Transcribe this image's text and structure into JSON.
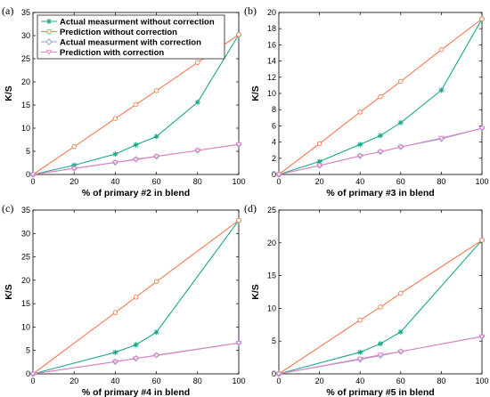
{
  "colors": {
    "actual_without": "#1aa88c",
    "prediction_without": "#f47a52",
    "actual_with": "#8c9fd1",
    "prediction_with": "#e383c4"
  },
  "chart_data": [
    {
      "type": "line",
      "panel_label": "(a)",
      "xlabel": "% of primary #2 in blend",
      "ylabel": "K/S",
      "xlim": [
        0,
        100
      ],
      "ylim": [
        0,
        35
      ],
      "xticks": [
        0,
        20,
        40,
        60,
        80,
        100
      ],
      "yticks": [
        0,
        5,
        10,
        15,
        20,
        25,
        30,
        35
      ],
      "grid": false,
      "legend_position": "top-left",
      "series": [
        {
          "name": "Actual measurment without correction",
          "marker": "star",
          "x": [
            0,
            20,
            40,
            50,
            60,
            80,
            100
          ],
          "y": [
            0,
            2.0,
            4.4,
            6.4,
            8.2,
            15.6,
            30.2
          ]
        },
        {
          "name": "Prediction without correction",
          "marker": "circle",
          "x": [
            0,
            20,
            40,
            50,
            60,
            80,
            100
          ],
          "y": [
            0,
            6.0,
            12.1,
            15.1,
            18.1,
            24.2,
            30.2
          ]
        },
        {
          "name": "Actual measurment with correction",
          "marker": "diamond",
          "x": [
            0,
            20,
            40,
            50,
            60,
            80,
            100
          ],
          "y": [
            0,
            1.3,
            2.6,
            3.3,
            3.9,
            5.2,
            6.5
          ]
        },
        {
          "name": "Prediction with correction",
          "marker": "triangle",
          "x": [
            0,
            20,
            40,
            50,
            60,
            80,
            100
          ],
          "y": [
            0,
            1.3,
            2.6,
            3.2,
            3.9,
            5.2,
            6.5
          ]
        }
      ]
    },
    {
      "type": "line",
      "panel_label": "(b)",
      "xlabel": "% of primary #3 in blend",
      "ylabel": "K/S",
      "xlim": [
        0,
        100
      ],
      "ylim": [
        0,
        20
      ],
      "xticks": [
        0,
        20,
        40,
        60,
        80,
        100
      ],
      "yticks": [
        0,
        2,
        4,
        6,
        8,
        10,
        12,
        14,
        16,
        18,
        20
      ],
      "grid": false,
      "series": [
        {
          "name": "Actual measurment without correction",
          "marker": "star",
          "x": [
            0,
            20,
            40,
            50,
            60,
            80,
            100
          ],
          "y": [
            0,
            1.6,
            3.7,
            4.8,
            6.4,
            10.4,
            19.2
          ]
        },
        {
          "name": "Prediction without correction",
          "marker": "circle",
          "x": [
            0,
            20,
            40,
            50,
            60,
            80,
            100
          ],
          "y": [
            0,
            3.8,
            7.7,
            9.6,
            11.5,
            15.4,
            19.2
          ]
        },
        {
          "name": "Actual measurment with correction",
          "marker": "diamond",
          "x": [
            0,
            20,
            40,
            50,
            60,
            80,
            100
          ],
          "y": [
            0,
            1.1,
            2.3,
            2.8,
            3.4,
            4.4,
            5.7
          ]
        },
        {
          "name": "Prediction with correction",
          "marker": "triangle",
          "x": [
            0,
            20,
            40,
            50,
            60,
            80,
            100
          ],
          "y": [
            0,
            1.1,
            2.3,
            2.8,
            3.4,
            4.5,
            5.7
          ]
        }
      ]
    },
    {
      "type": "line",
      "panel_label": "(c)",
      "xlabel": "% of primary #4 in blend",
      "ylabel": "K/S",
      "xlim": [
        0,
        100
      ],
      "ylim": [
        0,
        35
      ],
      "xticks": [
        0,
        20,
        40,
        60,
        80,
        100
      ],
      "yticks": [
        0,
        5,
        10,
        15,
        20,
        25,
        30,
        35
      ],
      "grid": false,
      "series": [
        {
          "name": "Actual measurment without correction",
          "marker": "star",
          "x": [
            0,
            40,
            50,
            60,
            100
          ],
          "y": [
            0,
            4.6,
            6.2,
            8.9,
            32.8
          ]
        },
        {
          "name": "Prediction without correction",
          "marker": "circle",
          "x": [
            0,
            40,
            50,
            60,
            100
          ],
          "y": [
            0,
            13.1,
            16.4,
            19.7,
            32.8
          ]
        },
        {
          "name": "Actual measurment with correction",
          "marker": "diamond",
          "x": [
            0,
            40,
            50,
            60,
            100
          ],
          "y": [
            0,
            2.6,
            3.3,
            4.0,
            6.6
          ]
        },
        {
          "name": "Prediction with correction",
          "marker": "triangle",
          "x": [
            0,
            40,
            50,
            60,
            100
          ],
          "y": [
            0,
            2.6,
            3.3,
            3.9,
            6.6
          ]
        }
      ]
    },
    {
      "type": "line",
      "panel_label": "(d)",
      "xlabel": "% of primary #5 in blend",
      "ylabel": "K/S",
      "xlim": [
        0,
        100
      ],
      "ylim": [
        0,
        25
      ],
      "xticks": [
        0,
        20,
        40,
        60,
        80,
        100
      ],
      "yticks": [
        0,
        5,
        10,
        15,
        20,
        25
      ],
      "grid": false,
      "series": [
        {
          "name": "Actual measurment without correction",
          "marker": "star",
          "x": [
            0,
            40,
            50,
            60,
            100
          ],
          "y": [
            0,
            3.3,
            4.6,
            6.4,
            20.4
          ]
        },
        {
          "name": "Prediction without correction",
          "marker": "circle",
          "x": [
            0,
            40,
            50,
            60,
            100
          ],
          "y": [
            0,
            8.2,
            10.2,
            12.3,
            20.4
          ]
        },
        {
          "name": "Actual measurment with correction",
          "marker": "diamond",
          "x": [
            0,
            40,
            50,
            60,
            100
          ],
          "y": [
            0,
            2.2,
            2.8,
            3.4,
            5.7
          ]
        },
        {
          "name": "Prediction with correction",
          "marker": "triangle",
          "x": [
            0,
            40,
            50,
            60,
            100
          ],
          "y": [
            0,
            2.3,
            2.9,
            3.4,
            5.7
          ]
        }
      ]
    }
  ]
}
